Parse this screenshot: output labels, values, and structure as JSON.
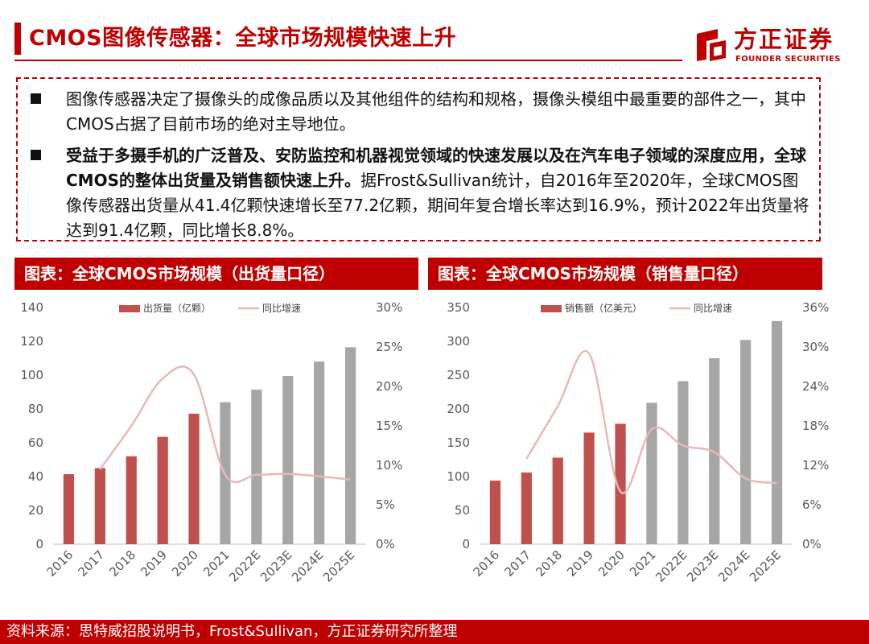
{
  "page": {
    "title": "CMOS图像传感器：全球市场规模快速上升"
  },
  "logo": {
    "cn": "方正证券",
    "en": "FOUNDER SECURITIES"
  },
  "bullets": [
    {
      "plain": "图像传感器决定了摄像头的成像品质以及其他组件的结构和规格，摄像头模组中最重要的部件之一，其中CMOS占据了目前市场的绝对主导地位。"
    },
    {
      "bold": "受益于多摄手机的广泛普及、安防监控和机器视觉领域的快速发展以及在汽车电子领域的深度应用，全球CMOS的整体出货量及销售额快速上升。",
      "plain": "据Frost&Sullivan统计，自2016年至2020年，全球CMOS图像传感器出货量从41.4亿颗快速增长至77.2亿颗，期间年复合增长率达到16.9%，预计2022年出货量将达到91.4亿颗，同比增长8.8%。"
    }
  ],
  "colors": {
    "red": "#c00000",
    "bar_actual": "#c0504d",
    "bar_forecast": "#a6a6a6",
    "line": "#e6b9b8"
  },
  "chart_data": [
    {
      "type": "bar",
      "title": "图表：全球CMOS市场规模（出货量口径）",
      "categories": [
        "2016",
        "2017",
        "2018",
        "2019",
        "2020",
        "2021",
        "2022E",
        "2023E",
        "2024E",
        "2025E"
      ],
      "series": [
        {
          "name": "出货量（亿颗）",
          "axis": "left",
          "values": [
            41.4,
            45,
            52,
            63.5,
            77.2,
            84,
            91.4,
            99.5,
            108,
            116.5
          ]
        },
        {
          "name": "同比增速",
          "type": "line",
          "axis": "right",
          "values": [
            null,
            9.5,
            15,
            21,
            21.5,
            8.8,
            8.8,
            8.9,
            8.6,
            8.2
          ]
        }
      ],
      "ylim": [
        0,
        140
      ],
      "y_ticks": [
        0,
        20,
        40,
        60,
        80,
        100,
        120,
        140
      ],
      "y2lim": [
        0,
        30
      ],
      "y2_ticks": [
        0,
        5,
        10,
        15,
        20,
        25,
        30
      ],
      "y2_tick_labels": [
        "0%",
        "5%",
        "10%",
        "15%",
        "20%",
        "25%",
        "30%"
      ],
      "actual_count": 5,
      "legend": "top"
    },
    {
      "type": "bar",
      "title": "图表：全球CMOS市场规模（销售量口径）",
      "categories": [
        "2016",
        "2017",
        "2018",
        "2019",
        "2020",
        "2021",
        "2022E",
        "2023E",
        "2024E",
        "2025E"
      ],
      "series": [
        {
          "name": "销售额（亿美元）",
          "axis": "left",
          "values": [
            94,
            106,
            128,
            165,
            178,
            209,
            241,
            275,
            302,
            330
          ]
        },
        {
          "name": "同比增速",
          "type": "line",
          "axis": "right",
          "values": [
            null,
            13,
            21,
            29,
            8,
            17.5,
            15,
            14,
            10,
            9.3
          ]
        }
      ],
      "ylim": [
        0,
        350
      ],
      "y_ticks": [
        0,
        50,
        100,
        150,
        200,
        250,
        300,
        350
      ],
      "y2lim": [
        0,
        36
      ],
      "y2_ticks": [
        0,
        6,
        12,
        18,
        24,
        30,
        36
      ],
      "y2_tick_labels": [
        "0%",
        "6%",
        "12%",
        "18%",
        "24%",
        "30%",
        "36%"
      ],
      "actual_count": 5,
      "legend": "top"
    }
  ],
  "footer": {
    "source": "资料来源：思特威招股说明书，Frost&Sullivan，方正证券研究所整理"
  }
}
